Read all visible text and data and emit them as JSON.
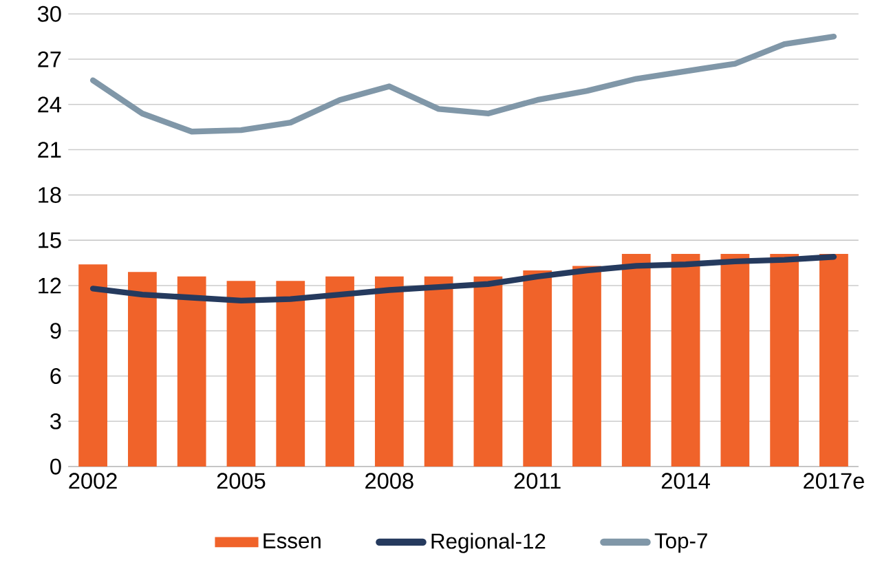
{
  "chart_data": {
    "type": "bar",
    "categories": [
      "2002",
      null,
      null,
      "2005",
      null,
      null,
      "2008",
      null,
      null,
      "2011",
      null,
      null,
      "2014",
      null,
      null,
      "2017e"
    ],
    "series": [
      {
        "name": "Essen",
        "color": "#f0632a",
        "values": [
          13.4,
          12.9,
          12.6,
          12.3,
          12.3,
          12.6,
          12.6,
          12.6,
          12.6,
          13.0,
          13.3,
          14.1,
          14.1,
          14.1,
          14.1,
          14.1
        ]
      },
      {
        "name": "Regional-12",
        "type": "line",
        "color": "#253a5e",
        "values": [
          11.8,
          11.4,
          11.2,
          11.0,
          11.1,
          11.4,
          11.7,
          11.9,
          12.1,
          12.6,
          13.0,
          13.3,
          13.4,
          13.6,
          13.7,
          13.9
        ]
      },
      {
        "name": "Top-7",
        "type": "line",
        "color": "#8097a8",
        "values": [
          25.6,
          23.4,
          22.2,
          22.3,
          22.8,
          24.3,
          25.2,
          23.7,
          23.4,
          24.3,
          24.9,
          25.7,
          26.2,
          26.7,
          28.0,
          28.5
        ]
      }
    ],
    "ylim": [
      0,
      30
    ],
    "yticks": [
      0,
      3,
      6,
      9,
      12,
      15,
      18,
      21,
      24,
      27,
      30
    ],
    "grid": "y",
    "legend": "bottom",
    "marker": "none",
    "line_style": "solid"
  }
}
